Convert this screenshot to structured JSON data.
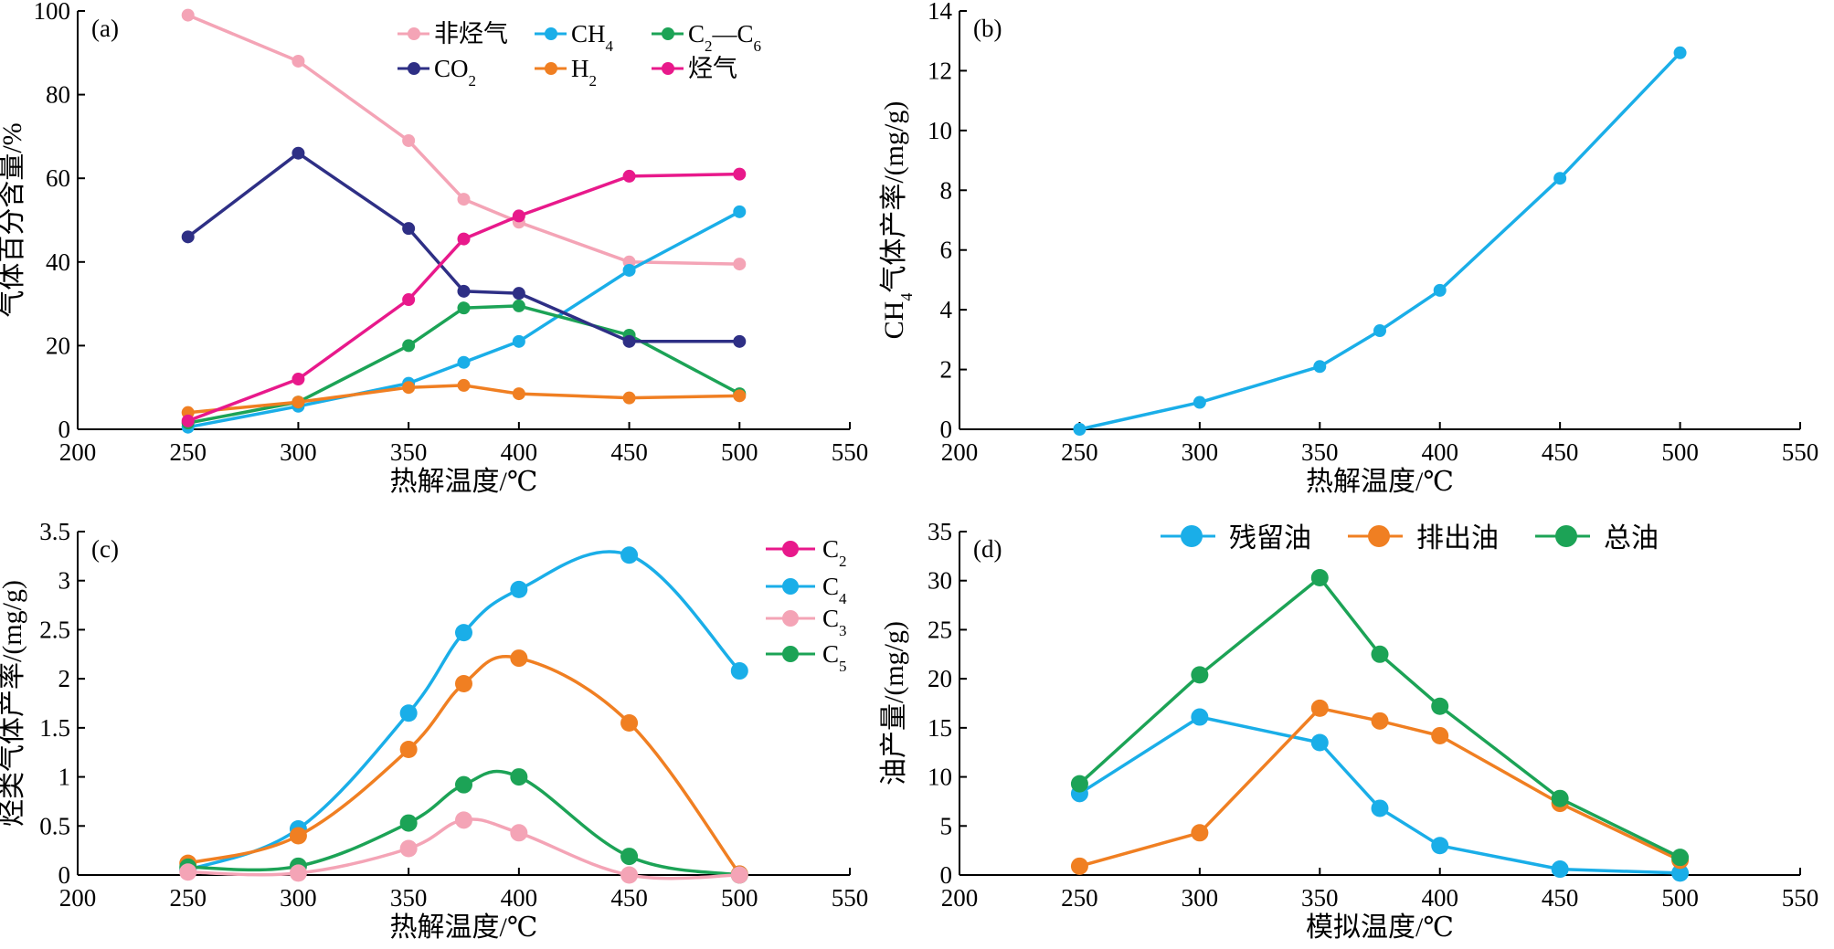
{
  "chart_data": [
    {
      "id": "a",
      "type": "line",
      "panel_label": "(a)",
      "xlabel": "热解温度/℃",
      "ylabel": "气体百分含量/%",
      "xlim": [
        200,
        550
      ],
      "ylim": [
        0,
        100
      ],
      "xticks": [
        200,
        250,
        300,
        350,
        400,
        450,
        500,
        550
      ],
      "yticks": [
        0,
        20,
        40,
        60,
        80,
        100
      ],
      "x": [
        250,
        300,
        350,
        375,
        400,
        450,
        500
      ],
      "legend_placement": "top-right",
      "series": [
        {
          "name": "非烃气",
          "color": "#f4a4b6",
          "values": [
            99,
            88,
            69,
            55,
            49.5,
            40,
            39.5
          ]
        },
        {
          "name": "CH",
          "sub": "4",
          "color": "#1aaee8",
          "values": [
            0.5,
            5.5,
            11,
            16,
            21,
            38,
            52
          ]
        },
        {
          "name": "C",
          "sub": "2",
          "mid": "—C",
          "sub2": "6",
          "color": "#1ca356",
          "values": [
            1.5,
            6.5,
            20,
            29,
            29.5,
            22.5,
            8.5
          ]
        },
        {
          "name": "CO",
          "sub": "2",
          "color": "#2e2f85",
          "values": [
            46,
            66,
            48,
            33,
            32.5,
            21,
            21
          ]
        },
        {
          "name": "H",
          "sub": "2",
          "color": "#f07f22",
          "values": [
            4,
            6.5,
            10,
            10.5,
            8.5,
            7.5,
            8
          ]
        },
        {
          "name": "烃气",
          "color": "#e8198b",
          "values": [
            2,
            12,
            31,
            45.5,
            51,
            60.5,
            61
          ]
        }
      ]
    },
    {
      "id": "b",
      "type": "line",
      "panel_label": "(b)",
      "xlabel": "热解温度/℃",
      "ylabel": "CH",
      "ylabel_sub": "4",
      "ylabel_rest": "气体产率/(mg/g)",
      "xlim": [
        200,
        550
      ],
      "ylim": [
        0,
        14
      ],
      "xticks": [
        200,
        250,
        300,
        350,
        400,
        450,
        500,
        550
      ],
      "yticks": [
        0,
        2,
        4,
        6,
        8,
        10,
        12,
        14
      ],
      "x": [
        250,
        300,
        350,
        375,
        400,
        450,
        500
      ],
      "series": [
        {
          "name": "",
          "color": "#1aaee8",
          "values": [
            0,
            0.9,
            2.1,
            3.3,
            4.65,
            8.4,
            12.6
          ]
        }
      ]
    },
    {
      "id": "c",
      "type": "line",
      "panel_label": "(c)",
      "xlabel": "热解温度/℃",
      "ylabel": "烃类气体产率/(mg/g)",
      "xlim": [
        200,
        550
      ],
      "ylim": [
        0,
        3.5
      ],
      "xticks": [
        200,
        250,
        300,
        350,
        400,
        450,
        500,
        550
      ],
      "yticks": [
        0,
        0.5,
        1,
        1.5,
        2,
        2.5,
        3,
        3.5
      ],
      "ytick_labels": [
        "0",
        "0.5",
        "1",
        "1.5",
        "2",
        "2.5",
        "3",
        "3.5"
      ],
      "legend_placement": "top-right",
      "legend": [
        {
          "name": "C",
          "sub": "2",
          "color": "#e8198b"
        },
        {
          "name": "C",
          "sub": "4",
          "color": "#1aaee8"
        },
        {
          "name": "C",
          "sub": "3",
          "color": "#f4a4b6"
        },
        {
          "name": "C",
          "sub": "5",
          "color": "#1ca356"
        }
      ],
      "series": [
        {
          "color": "#1aaee8",
          "x": [
            250,
            300,
            350,
            375,
            400,
            450,
            500
          ],
          "values": [
            0.05,
            0.47,
            1.65,
            2.47,
            2.91,
            3.26,
            2.08
          ]
        },
        {
          "color": "#f07f22",
          "x": [
            250,
            300,
            350,
            375,
            400,
            450,
            500
          ],
          "values": [
            0.12,
            0.4,
            1.28,
            1.95,
            2.21,
            1.55,
            0.01
          ]
        },
        {
          "color": "#1ca356",
          "x": [
            250,
            300,
            350,
            375,
            400,
            450,
            500
          ],
          "values": [
            0.08,
            0.09,
            0.53,
            0.92,
            1.0,
            0.19,
            0.0
          ]
        },
        {
          "color": "#f4a4b6",
          "x": [
            250,
            300,
            350,
            375,
            400,
            450,
            500
          ],
          "values": [
            0.03,
            0.02,
            0.27,
            0.56,
            0.43,
            0.0,
            0.0
          ]
        }
      ]
    },
    {
      "id": "d",
      "type": "line",
      "panel_label": "(d)",
      "xlabel": "模拟温度/℃",
      "ylabel": "油产量/(mg/g)",
      "xlim": [
        200,
        550
      ],
      "ylim": [
        0,
        35
      ],
      "xticks": [
        200,
        250,
        300,
        350,
        400,
        450,
        500,
        550
      ],
      "yticks": [
        0,
        5,
        10,
        15,
        20,
        25,
        30,
        35
      ],
      "legend_placement": "top",
      "series": [
        {
          "name": "残留油",
          "color": "#1aaee8",
          "x": [
            250,
            300,
            350,
            375,
            400,
            450,
            500
          ],
          "values": [
            8.3,
            16.1,
            13.5,
            6.8,
            3.0,
            0.6,
            0.2
          ]
        },
        {
          "name": "排出油",
          "color": "#f07f22",
          "x": [
            250,
            300,
            350,
            375,
            400,
            450,
            500
          ],
          "values": [
            0.9,
            4.3,
            17.0,
            15.7,
            14.2,
            7.3,
            1.5
          ]
        },
        {
          "name": "总油",
          "color": "#1ca356",
          "x": [
            250,
            300,
            350,
            375,
            400,
            450,
            500
          ],
          "values": [
            9.3,
            20.4,
            30.3,
            22.5,
            17.2,
            7.8,
            1.8
          ]
        }
      ]
    }
  ]
}
